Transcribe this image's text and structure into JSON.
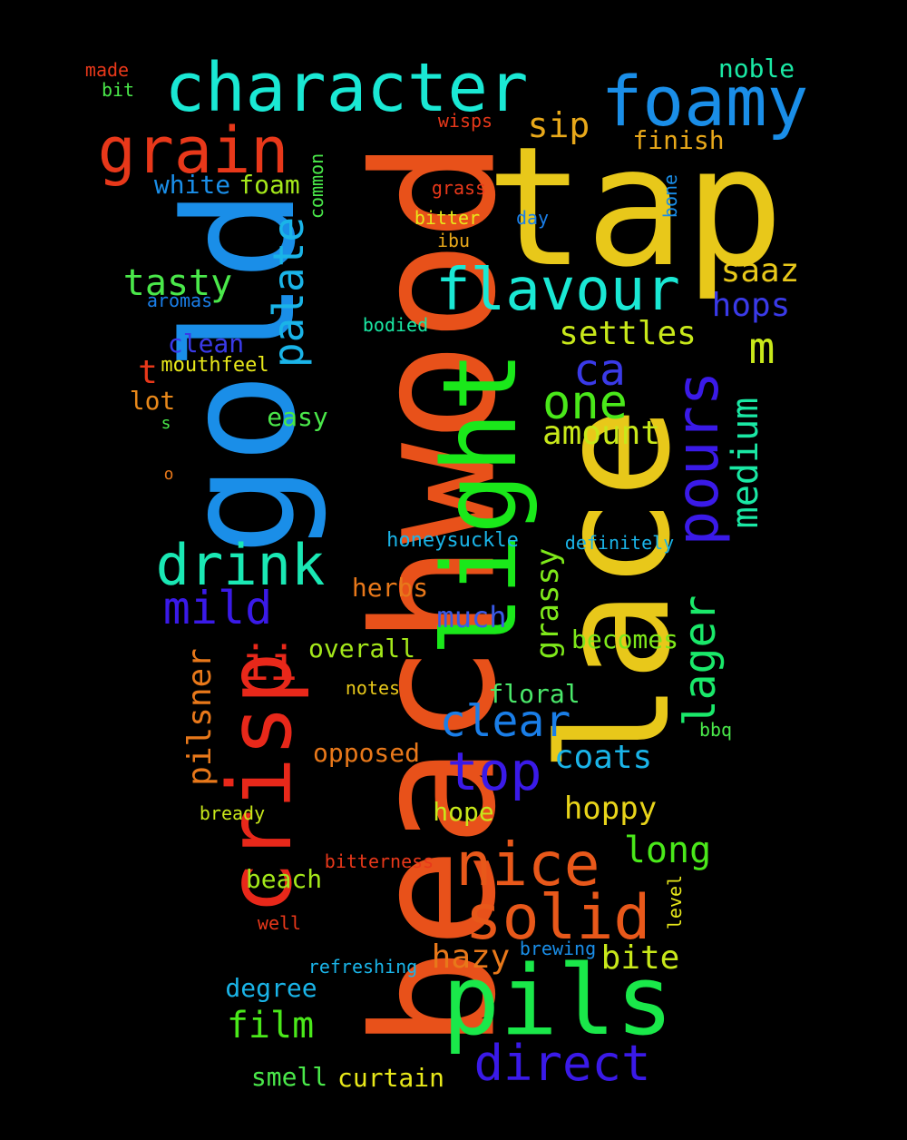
{
  "background": "#000000",
  "words": [
    {
      "text": "beachwood",
      "color": "#e8511a"
    },
    {
      "text": "tap",
      "color": "#e8c81a"
    },
    {
      "text": "lace",
      "color": "#e8c81a"
    },
    {
      "text": "gold",
      "color": "#1a8ee8"
    },
    {
      "text": "light",
      "color": "#1ae81a"
    },
    {
      "text": "character",
      "color": "#1ae8d4"
    },
    {
      "text": "foamy",
      "color": "#1a8ee8"
    },
    {
      "text": "pils",
      "color": "#1ae84a"
    },
    {
      "text": "crisp",
      "color": "#e8281a"
    },
    {
      "text": "grain",
      "color": "#e8381a"
    },
    {
      "text": "flavour",
      "color": "#1ae8d4"
    },
    {
      "text": "pours",
      "color": "#3a1ae8"
    },
    {
      "text": "solid",
      "color": "#e8581a"
    },
    {
      "text": "nice",
      "color": "#e8581a"
    },
    {
      "text": "drink",
      "color": "#1ae8b4"
    },
    {
      "text": "palate",
      "color": "#1ab4e8"
    },
    {
      "text": "lager",
      "color": "#1ae86a"
    },
    {
      "text": "direct",
      "color": "#3a1ae8"
    },
    {
      "text": "top",
      "color": "#3a1ae8"
    },
    {
      "text": "one",
      "color": "#4ae81a"
    },
    {
      "text": "clear",
      "color": "#1a7ee8"
    },
    {
      "text": "medium",
      "color": "#1ae8a4"
    },
    {
      "text": "mild",
      "color": "#3a1ae8"
    },
    {
      "text": "ii",
      "color": "#e8281a"
    },
    {
      "text": "ca",
      "color": "#3a3ae8"
    },
    {
      "text": "m",
      "color": "#c8e81a"
    },
    {
      "text": "tasty",
      "color": "#4ae84a"
    },
    {
      "text": "sip",
      "color": "#e8a81a"
    },
    {
      "text": "saaz",
      "color": "#e8c81a"
    },
    {
      "text": "hops",
      "color": "#3a3ae8"
    },
    {
      "text": "settles",
      "color": "#c8e81a"
    },
    {
      "text": "amount",
      "color": "#c8e81a"
    },
    {
      "text": "grassy",
      "color": "#7ee81a"
    },
    {
      "text": "pilsner",
      "color": "#e8781a"
    },
    {
      "text": "long",
      "color": "#4ae81a"
    },
    {
      "text": "film",
      "color": "#4ae81a"
    },
    {
      "text": "hazy",
      "color": "#e8781a"
    },
    {
      "text": "bite",
      "color": "#c8e81a"
    },
    {
      "text": "coats",
      "color": "#1ab4e8"
    },
    {
      "text": "hoppy",
      "color": "#e8d41a"
    },
    {
      "text": "much",
      "color": "#3a5ae8"
    },
    {
      "text": "overall",
      "color": "#a4e81a"
    },
    {
      "text": "opposed",
      "color": "#e8781a"
    },
    {
      "text": "herbs",
      "color": "#e8781a"
    },
    {
      "text": "becomes",
      "color": "#7ee81a"
    },
    {
      "text": "floral",
      "color": "#4ae86a"
    },
    {
      "text": "beach",
      "color": "#a4e81a"
    },
    {
      "text": "hope",
      "color": "#c8e81a"
    },
    {
      "text": "degree",
      "color": "#1ab4e8"
    },
    {
      "text": "smell",
      "color": "#4ae84a"
    },
    {
      "text": "curtain",
      "color": "#e8e81a"
    },
    {
      "text": "noble",
      "color": "#1ae8a4"
    },
    {
      "text": "finish",
      "color": "#e8a81a"
    },
    {
      "text": "foam",
      "color": "#a4e81a"
    },
    {
      "text": "white",
      "color": "#1a8ee8"
    },
    {
      "text": "clean",
      "color": "#3a3ae8"
    },
    {
      "text": "t",
      "color": "#e8381a"
    },
    {
      "text": "lot",
      "color": "#e8881a"
    },
    {
      "text": "easy",
      "color": "#4ae84a"
    },
    {
      "text": "mouthfeel",
      "color": "#e8e81a"
    },
    {
      "text": "honeysuckle",
      "color": "#1ab4e8"
    },
    {
      "text": "definitely",
      "color": "#1ab4e8"
    },
    {
      "text": "notes",
      "color": "#e8c81a"
    },
    {
      "text": "bbq",
      "color": "#4ae84a"
    },
    {
      "text": "bready",
      "color": "#c8e81a"
    },
    {
      "text": "bitterness",
      "color": "#e8381a"
    },
    {
      "text": "level",
      "color": "#e8e81a"
    },
    {
      "text": "well",
      "color": "#e8381a"
    },
    {
      "text": "refreshing",
      "color": "#1ab4e8"
    },
    {
      "text": "brewing",
      "color": "#1a8ee8"
    },
    {
      "text": "bodied",
      "color": "#1ae8a4"
    },
    {
      "text": "aromas",
      "color": "#1a7ee8"
    },
    {
      "text": "common",
      "color": "#4ae84a"
    },
    {
      "text": "bone",
      "color": "#1a8ee8"
    },
    {
      "text": "grass",
      "color": "#e8381a"
    },
    {
      "text": "bitter",
      "color": "#e8e81a"
    },
    {
      "text": "ibu",
      "color": "#e8a81a"
    },
    {
      "text": "day",
      "color": "#1a7ee8"
    },
    {
      "text": "wisps",
      "color": "#e8381a"
    },
    {
      "text": "made",
      "color": "#e8381a"
    },
    {
      "text": "bit",
      "color": "#4ae84a"
    },
    {
      "text": "s",
      "color": "#4ae84a"
    },
    {
      "text": "o",
      "color": "#e8781a"
    }
  ]
}
